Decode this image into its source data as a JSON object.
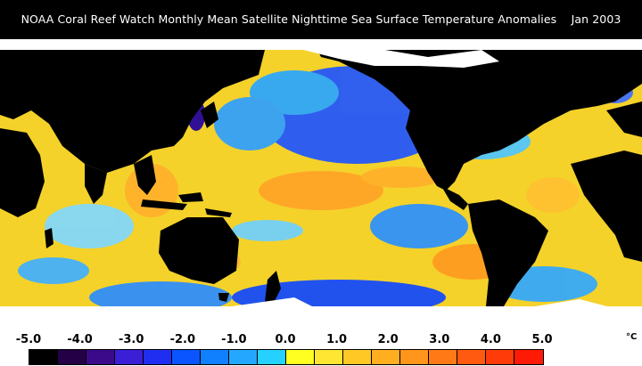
{
  "title": "NOAA Coral Reef Watch Monthly Mean Satellite Nighttime Sea Surface Temperature Anomalies    Jan 2003",
  "map": {
    "ocean_base_color": "#f4d22a",
    "land_color": "#000000",
    "ice_color": "#ffffff"
  },
  "legend": {
    "ticks": [
      "-5.0",
      "-4.0",
      "-3.0",
      "-2.0",
      "-1.0",
      "0.0",
      "1.0",
      "2.0",
      "3.0",
      "4.0",
      "5.0"
    ],
    "unit": "°C",
    "colors": [
      "#000000",
      "#240046",
      "#3b0a8a",
      "#3b1fd6",
      "#1f2ef0",
      "#0a55ff",
      "#1080ff",
      "#24a8ff",
      "#25d2ff",
      "#ffff22",
      "#ffe633",
      "#ffc825",
      "#ffae20",
      "#ff951a",
      "#ff7a16",
      "#ff5a10",
      "#ff3b0a",
      "#ff1a05"
    ]
  }
}
